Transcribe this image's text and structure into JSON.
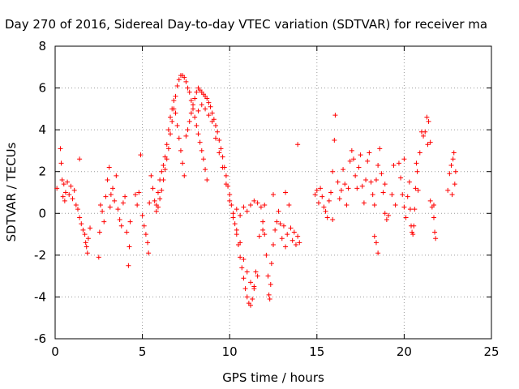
{
  "chart_data": {
    "type": "scatter",
    "title": "Day 270 of 2016, Sidereal Day-to-day VTEC variation (SDTVAR) for receiver ma",
    "xlabel": "GPS time / hours",
    "ylabel": "SDTVAR / TECUs",
    "xlim": [
      0,
      25
    ],
    "ylim": [
      -6,
      8
    ],
    "xticks": [
      0,
      5,
      10,
      15,
      20,
      25
    ],
    "yticks": [
      -6,
      -4,
      -2,
      0,
      2,
      4,
      6,
      8
    ],
    "grid": true,
    "marker": "+",
    "color": "#ff0000",
    "series": [
      {
        "points": [
          [
            0.1,
            1.2
          ],
          [
            0.3,
            3.1
          ],
          [
            0.35,
            2.4
          ],
          [
            0.4,
            1.6
          ],
          [
            0.45,
            0.8
          ],
          [
            0.5,
            1.4
          ],
          [
            0.55,
            0.6
          ],
          [
            0.6,
            1.0
          ],
          [
            0.7,
            1.5
          ],
          [
            0.8,
            0.9
          ],
          [
            0.9,
            1.3
          ],
          [
            1.0,
            0.7
          ],
          [
            1.1,
            1.1
          ],
          [
            1.2,
            0.4
          ],
          [
            1.3,
            0.2
          ],
          [
            1.4,
            -0.2
          ],
          [
            1.5,
            -0.5
          ],
          [
            1.6,
            -0.8
          ],
          [
            1.7,
            -1.0
          ],
          [
            1.75,
            -1.4
          ],
          [
            1.8,
            -1.6
          ],
          [
            1.85,
            -1.9
          ],
          [
            1.9,
            -1.2
          ],
          [
            2.0,
            -0.7
          ],
          [
            1.4,
            2.6
          ],
          [
            2.5,
            -2.1
          ],
          [
            2.55,
            -0.9
          ],
          [
            2.6,
            0.4
          ],
          [
            2.7,
            0.1
          ],
          [
            2.8,
            -0.4
          ],
          [
            2.9,
            0.8
          ],
          [
            3.0,
            1.6
          ],
          [
            3.1,
            2.2
          ],
          [
            3.15,
            0.3
          ],
          [
            3.2,
            0.9
          ],
          [
            3.3,
            1.2
          ],
          [
            3.4,
            0.6
          ],
          [
            3.5,
            1.8
          ],
          [
            3.6,
            0.2
          ],
          [
            3.7,
            -0.3
          ],
          [
            3.8,
            -0.6
          ],
          [
            3.9,
            0.5
          ],
          [
            4.0,
            0.8
          ],
          [
            4.1,
            -0.9
          ],
          [
            4.2,
            -2.5
          ],
          [
            4.25,
            -1.6
          ],
          [
            4.3,
            -0.4
          ],
          [
            4.6,
            0.9
          ],
          [
            4.7,
            0.4
          ],
          [
            4.8,
            1.0
          ],
          [
            4.9,
            2.8
          ],
          [
            5.0,
            -0.1
          ],
          [
            5.1,
            -0.6
          ],
          [
            5.2,
            -1.0
          ],
          [
            5.3,
            -1.4
          ],
          [
            5.35,
            -1.9
          ],
          [
            5.4,
            0.5
          ],
          [
            5.5,
            1.8
          ],
          [
            5.6,
            1.2
          ],
          [
            5.7,
            0.6
          ],
          [
            5.8,
            0.1
          ],
          [
            5.9,
            0.3
          ],
          [
            6.0,
            0.7
          ],
          [
            6.1,
            1.1
          ],
          [
            6.2,
            1.6
          ],
          [
            6.3,
            2.1
          ],
          [
            6.4,
            2.6
          ],
          [
            6.5,
            3.1
          ],
          [
            6.6,
            3.8
          ],
          [
            6.7,
            4.4
          ],
          [
            6.8,
            5.0
          ],
          [
            6.9,
            5.6
          ],
          [
            7.0,
            6.1
          ],
          [
            7.1,
            6.4
          ],
          [
            7.2,
            6.6
          ],
          [
            7.3,
            6.6
          ],
          [
            7.4,
            6.5
          ],
          [
            7.5,
            6.3
          ],
          [
            7.6,
            6.0
          ],
          [
            7.7,
            5.8
          ],
          [
            7.8,
            5.4
          ],
          [
            7.9,
            5.0
          ],
          [
            8.0,
            4.6
          ],
          [
            8.1,
            4.2
          ],
          [
            8.2,
            3.8
          ],
          [
            8.3,
            3.4
          ],
          [
            8.4,
            3.0
          ],
          [
            8.5,
            2.6
          ],
          [
            8.6,
            2.1
          ],
          [
            8.7,
            1.6
          ],
          [
            5.8,
            0.4
          ],
          [
            5.9,
            1.0
          ],
          [
            6.0,
            1.6
          ],
          [
            6.1,
            2.0
          ],
          [
            6.2,
            2.3
          ],
          [
            6.3,
            2.7
          ],
          [
            6.4,
            3.3
          ],
          [
            6.5,
            4.0
          ],
          [
            6.6,
            4.6
          ],
          [
            6.7,
            5.0
          ],
          [
            6.8,
            5.4
          ],
          [
            6.9,
            4.8
          ],
          [
            7.0,
            4.2
          ],
          [
            7.1,
            3.6
          ],
          [
            7.2,
            3.0
          ],
          [
            7.3,
            2.4
          ],
          [
            7.4,
            1.8
          ],
          [
            7.5,
            3.7
          ],
          [
            7.6,
            4.0
          ],
          [
            7.7,
            4.4
          ],
          [
            7.8,
            4.8
          ],
          [
            7.9,
            5.2
          ],
          [
            8.0,
            5.5
          ],
          [
            8.1,
            5.8
          ],
          [
            8.2,
            6.0
          ],
          [
            8.3,
            5.9
          ],
          [
            8.4,
            5.8
          ],
          [
            8.5,
            5.7
          ],
          [
            8.6,
            5.6
          ],
          [
            8.7,
            5.5
          ],
          [
            8.8,
            5.3
          ],
          [
            8.9,
            5.1
          ],
          [
            9.0,
            4.8
          ],
          [
            9.1,
            4.5
          ],
          [
            9.2,
            4.2
          ],
          [
            9.3,
            3.9
          ],
          [
            9.4,
            3.5
          ],
          [
            9.5,
            3.1
          ],
          [
            9.6,
            2.7
          ],
          [
            9.7,
            2.2
          ],
          [
            9.8,
            1.8
          ],
          [
            9.9,
            1.3
          ],
          [
            10.0,
            0.9
          ],
          [
            10.1,
            0.4
          ],
          [
            10.2,
            0.0
          ],
          [
            10.3,
            -0.5
          ],
          [
            10.4,
            -1.0
          ],
          [
            10.5,
            -1.5
          ],
          [
            10.6,
            -2.1
          ],
          [
            10.7,
            -2.6
          ],
          [
            10.8,
            -3.1
          ],
          [
            10.9,
            -3.6
          ],
          [
            11.0,
            -4.0
          ],
          [
            11.1,
            -4.3
          ],
          [
            11.2,
            -4.4
          ],
          [
            11.3,
            -4.1
          ],
          [
            11.4,
            -3.5
          ],
          [
            11.5,
            -2.8
          ],
          [
            8.2,
            4.9
          ],
          [
            8.4,
            5.2
          ],
          [
            8.6,
            5.0
          ],
          [
            8.8,
            4.7
          ],
          [
            9.0,
            4.4
          ],
          [
            9.2,
            3.6
          ],
          [
            9.4,
            2.9
          ],
          [
            9.6,
            2.2
          ],
          [
            9.8,
            1.4
          ],
          [
            10.0,
            0.6
          ],
          [
            10.2,
            -0.2
          ],
          [
            10.4,
            -0.8
          ],
          [
            10.6,
            -1.4
          ],
          [
            10.8,
            -2.2
          ],
          [
            11.0,
            -2.8
          ],
          [
            11.2,
            -3.3
          ],
          [
            11.4,
            -3.6
          ],
          [
            11.6,
            -3.0
          ],
          [
            10.4,
            0.2
          ],
          [
            10.6,
            -0.1
          ],
          [
            10.8,
            0.3
          ],
          [
            11.0,
            0.1
          ],
          [
            11.2,
            0.4
          ],
          [
            11.4,
            0.6
          ],
          [
            11.6,
            0.5
          ],
          [
            11.8,
            0.3
          ],
          [
            11.9,
            -0.4
          ],
          [
            12.0,
            -1.0
          ],
          [
            12.1,
            -2.0
          ],
          [
            12.2,
            -3.0
          ],
          [
            12.25,
            -3.9
          ],
          [
            12.3,
            -4.1
          ],
          [
            12.35,
            -3.4
          ],
          [
            12.4,
            -2.4
          ],
          [
            12.5,
            -1.5
          ],
          [
            12.6,
            -0.8
          ],
          [
            12.7,
            -0.4
          ],
          [
            12.8,
            0.1
          ],
          [
            12.9,
            -0.5
          ],
          [
            13.0,
            -1.2
          ],
          [
            13.1,
            -0.6
          ],
          [
            13.2,
            -1.6
          ],
          [
            13.3,
            -1.0
          ],
          [
            13.4,
            0.4
          ],
          [
            13.5,
            -0.7
          ],
          [
            13.6,
            -1.3
          ],
          [
            13.7,
            -0.9
          ],
          [
            13.8,
            -1.5
          ],
          [
            13.9,
            -1.1
          ],
          [
            14.0,
            -1.4
          ],
          [
            13.9,
            3.3
          ],
          [
            12.5,
            0.9
          ],
          [
            13.2,
            1.0
          ],
          [
            12.0,
            0.4
          ],
          [
            11.7,
            -1.1
          ],
          [
            11.9,
            -0.8
          ],
          [
            14.9,
            0.9
          ],
          [
            15.0,
            1.1
          ],
          [
            15.1,
            0.5
          ],
          [
            15.2,
            1.2
          ],
          [
            15.3,
            0.8
          ],
          [
            15.4,
            0.3
          ],
          [
            15.5,
            0.1
          ],
          [
            15.6,
            -0.2
          ],
          [
            15.7,
            0.6
          ],
          [
            15.8,
            1.0
          ],
          [
            15.9,
            2.0
          ],
          [
            16.0,
            3.5
          ],
          [
            16.05,
            4.7
          ],
          [
            15.9,
            -0.3
          ],
          [
            16.2,
            1.5
          ],
          [
            16.3,
            0.7
          ],
          [
            16.4,
            1.1
          ],
          [
            16.5,
            2.1
          ],
          [
            16.6,
            1.4
          ],
          [
            16.7,
            0.4
          ],
          [
            16.8,
            1.2
          ],
          [
            16.9,
            2.5
          ],
          [
            17.0,
            3.0
          ],
          [
            17.1,
            2.6
          ],
          [
            17.2,
            1.8
          ],
          [
            17.3,
            1.2
          ],
          [
            17.4,
            2.2
          ],
          [
            17.5,
            2.8
          ],
          [
            17.6,
            1.3
          ],
          [
            17.7,
            0.5
          ],
          [
            17.8,
            1.6
          ],
          [
            17.9,
            2.5
          ],
          [
            18.0,
            2.9
          ],
          [
            18.1,
            1.5
          ],
          [
            18.2,
            0.9
          ],
          [
            18.3,
            0.4
          ],
          [
            18.4,
            1.6
          ],
          [
            18.5,
            2.3
          ],
          [
            18.6,
            3.1
          ],
          [
            18.7,
            1.9
          ],
          [
            18.8,
            1.0
          ],
          [
            18.9,
            1.4
          ],
          [
            18.3,
            -1.1
          ],
          [
            18.4,
            -1.4
          ],
          [
            18.5,
            -1.9
          ],
          [
            18.9,
            0.0
          ],
          [
            19.0,
            -0.3
          ],
          [
            19.1,
            -0.1
          ],
          [
            19.3,
            0.9
          ],
          [
            19.4,
            2.3
          ],
          [
            19.5,
            0.4
          ],
          [
            19.8,
            1.7
          ],
          [
            19.9,
            0.9
          ],
          [
            20.0,
            0.3
          ],
          [
            20.1,
            -0.2
          ],
          [
            20.2,
            0.8
          ],
          [
            20.3,
            1.5
          ],
          [
            20.35,
            0.2
          ],
          [
            20.4,
            -0.6
          ],
          [
            20.45,
            -0.9
          ],
          [
            20.5,
            -1.0
          ],
          [
            20.55,
            -0.6
          ],
          [
            20.6,
            0.2
          ],
          [
            20.65,
            1.2
          ],
          [
            20.7,
            2.4
          ],
          [
            20.75,
            2.0
          ],
          [
            20.8,
            1.1
          ],
          [
            19.7,
            2.4
          ],
          [
            20.0,
            2.6
          ],
          [
            20.9,
            2.9
          ],
          [
            21.0,
            3.9
          ],
          [
            21.1,
            3.7
          ],
          [
            21.2,
            3.9
          ],
          [
            21.3,
            4.6
          ],
          [
            21.4,
            4.4
          ],
          [
            21.5,
            3.4
          ],
          [
            21.35,
            3.3
          ],
          [
            21.5,
            0.6
          ],
          [
            21.6,
            0.3
          ],
          [
            21.7,
            -0.2
          ],
          [
            21.75,
            -0.9
          ],
          [
            21.8,
            -1.2
          ],
          [
            21.7,
            0.4
          ],
          [
            22.5,
            1.1
          ],
          [
            22.6,
            1.9
          ],
          [
            22.7,
            2.3
          ],
          [
            22.75,
            0.9
          ],
          [
            22.8,
            2.6
          ],
          [
            22.85,
            2.9
          ],
          [
            22.9,
            1.4
          ],
          [
            22.95,
            2.0
          ]
        ]
      }
    ]
  }
}
